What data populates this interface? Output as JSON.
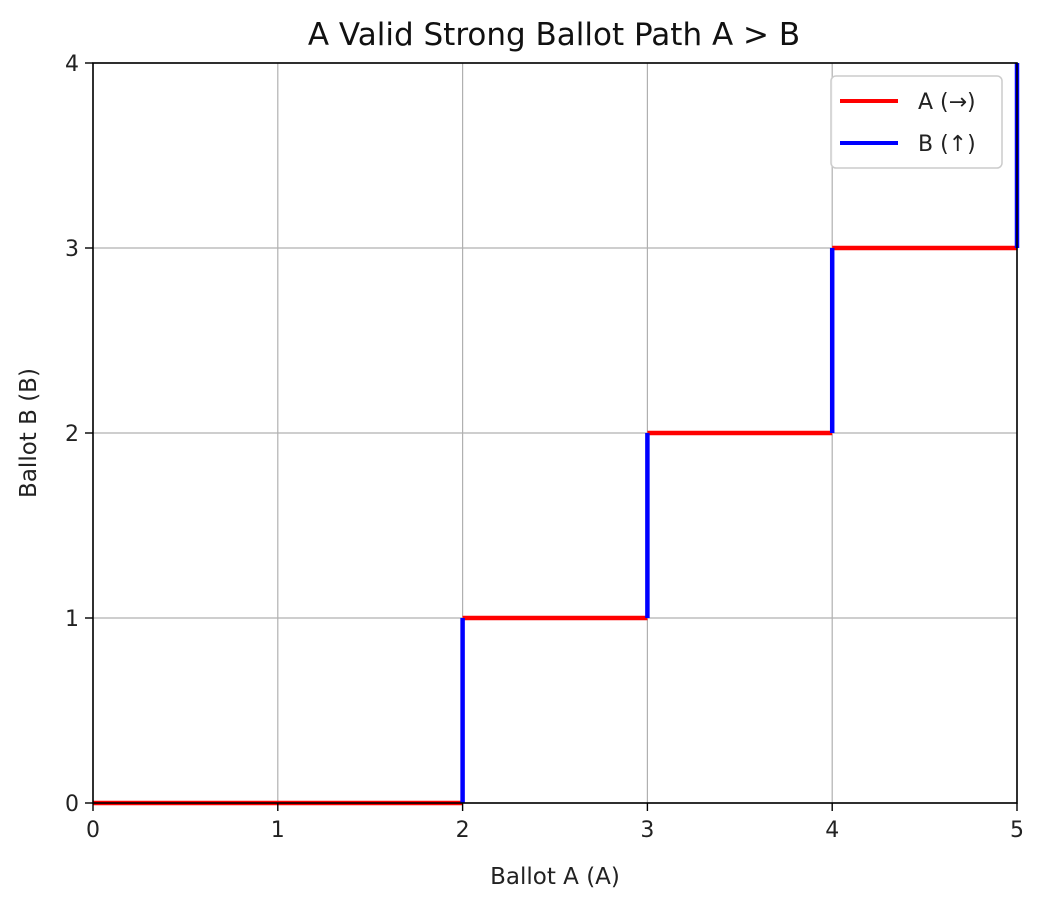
{
  "chart_data": {
    "type": "line",
    "title": "A Valid Strong Ballot Path A > B",
    "xlabel": "Ballot A (A)",
    "ylabel": "Ballot B (B)",
    "xlim": [
      0,
      5
    ],
    "ylim": [
      0,
      4
    ],
    "xticks": [
      "0",
      "1",
      "2",
      "3",
      "4",
      "5"
    ],
    "yticks": [
      "0",
      "1",
      "2",
      "3",
      "4"
    ],
    "grid": true,
    "legend_position": "top-right",
    "series": [
      {
        "name": "A (→)",
        "color": "#ff0000",
        "segments": [
          [
            [
              0,
              0
            ],
            [
              2,
              0
            ]
          ],
          [
            [
              2,
              1
            ],
            [
              3,
              1
            ]
          ],
          [
            [
              3,
              2
            ],
            [
              4,
              2
            ]
          ],
          [
            [
              4,
              3
            ],
            [
              5,
              3
            ]
          ]
        ]
      },
      {
        "name": "B (↑)",
        "color": "#0000ff",
        "segments": [
          [
            [
              2,
              0
            ],
            [
              2,
              1
            ]
          ],
          [
            [
              3,
              1
            ],
            [
              3,
              2
            ]
          ],
          [
            [
              4,
              2
            ],
            [
              4,
              3
            ]
          ],
          [
            [
              5,
              3
            ],
            [
              5,
              4
            ]
          ]
        ]
      }
    ]
  }
}
